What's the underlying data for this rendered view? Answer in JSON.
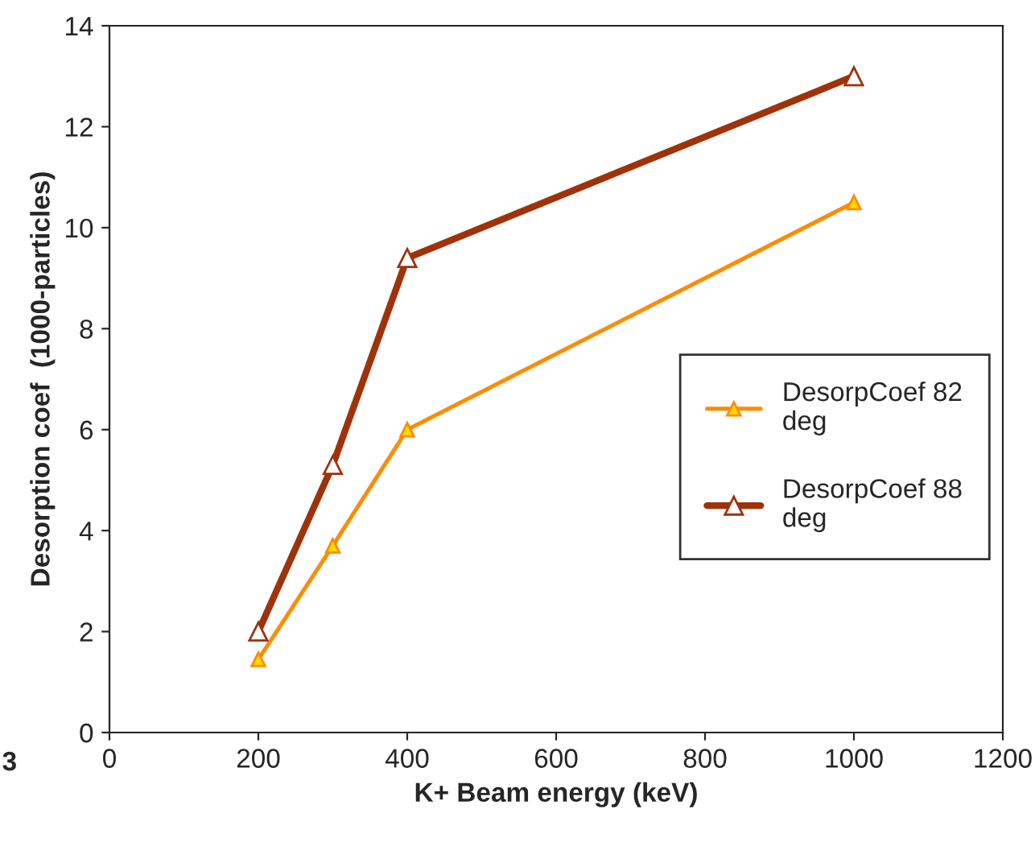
{
  "chart_data": {
    "type": "line",
    "xlabel": "K+ Beam energy (keV)",
    "ylabel": "Desorption coef  (1000-particles)",
    "x": [
      200,
      300,
      400,
      1000
    ],
    "series": [
      {
        "name": "DesorpCoef 82 deg",
        "color": "#ff8c00",
        "values": [
          1.45,
          3.7,
          6.0,
          10.5
        ],
        "marker": "triangle"
      },
      {
        "name": "DesorpCoef 88 deg",
        "color": "#a0320a",
        "values": [
          2.0,
          5.3,
          9.4,
          13.0
        ],
        "marker": "triangle"
      }
    ],
    "xlim": [
      0,
      1200
    ],
    "xticks": [
      0,
      200,
      400,
      600,
      800,
      1000,
      1200
    ],
    "ylim": [
      0,
      14
    ],
    "yticks": [
      0,
      2,
      4,
      6,
      8,
      10,
      12,
      14
    ],
    "grid": false,
    "legend": "right",
    "line_style": "solid",
    "annotations": [
      "3"
    ]
  }
}
